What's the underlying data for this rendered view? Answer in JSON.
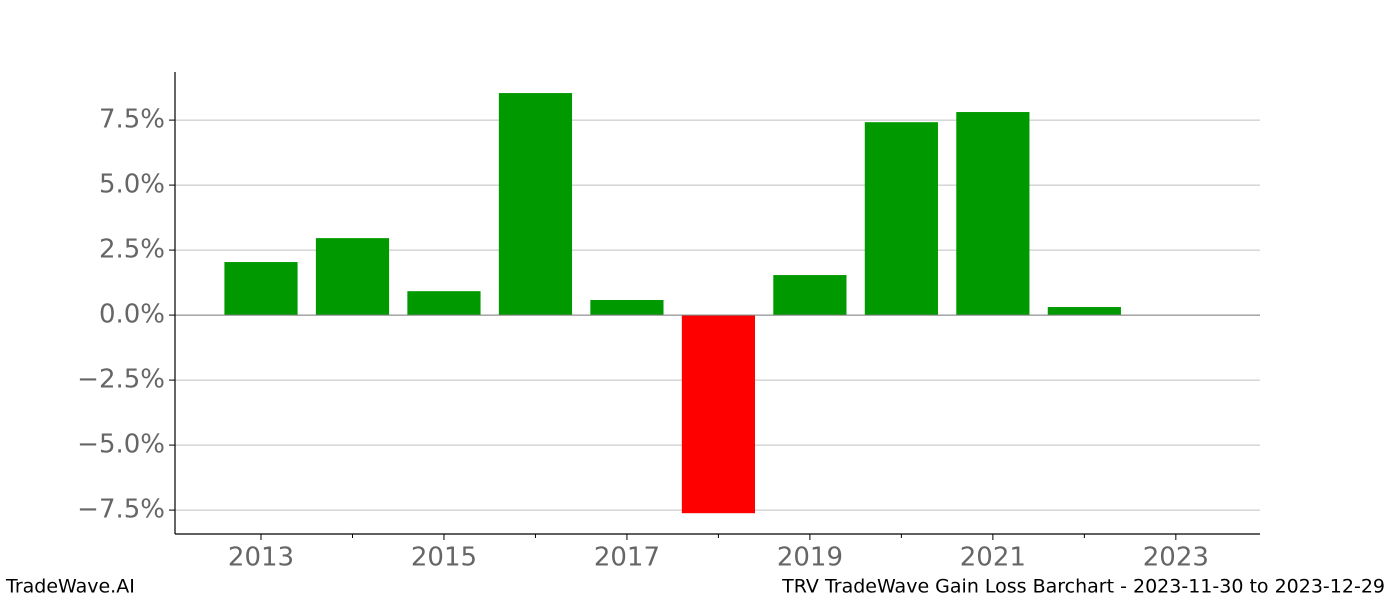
{
  "chart_data": {
    "type": "bar",
    "footer_left": "TradeWave.AI",
    "footer_right": "TRV TradeWave Gain Loss Barchart - 2023-11-30 to 2023-12-29",
    "x": [
      2013,
      2014,
      2015,
      2016,
      2017,
      2018,
      2019,
      2020,
      2021,
      2022
    ],
    "values": [
      2.04,
      2.96,
      0.92,
      8.54,
      0.58,
      -7.62,
      1.54,
      7.42,
      7.81,
      0.31
    ],
    "positive_color": "#009900",
    "negative_color": "#ff0000",
    "xlim": [
      2012.06,
      2023.92
    ],
    "xticks": [
      2013,
      2015,
      2017,
      2019,
      2021,
      2023
    ],
    "xminor_ticks": [
      2014,
      2016,
      2018,
      2020,
      2022
    ],
    "ylim": [
      -8.42,
      9.35
    ],
    "yticks": [
      {
        "value": -7.5,
        "label": "−7.5%"
      },
      {
        "value": -5,
        "label": "−5.0%"
      },
      {
        "value": -2.5,
        "label": "−2.5%"
      },
      {
        "value": 0,
        "label": "0.0%"
      },
      {
        "value": 2.5,
        "label": "2.5%"
      },
      {
        "value": 5,
        "label": "5.0%"
      },
      {
        "value": 7.5,
        "label": "7.5%"
      }
    ],
    "grid": true
  }
}
